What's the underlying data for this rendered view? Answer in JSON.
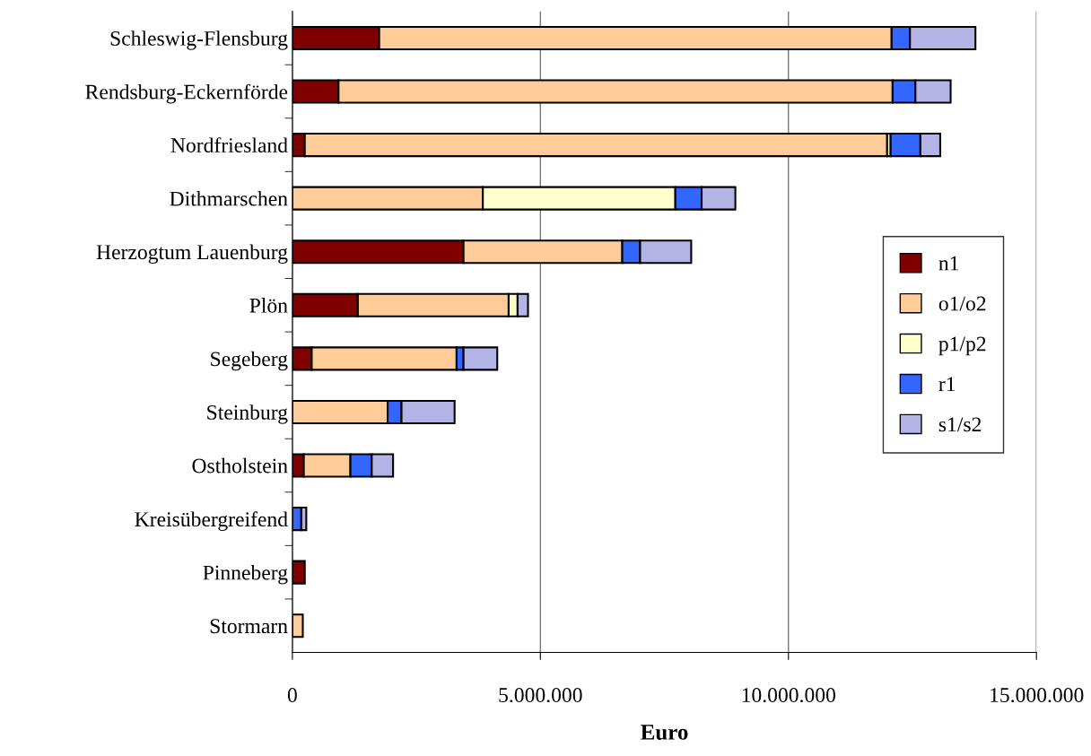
{
  "chart_data": {
    "type": "bar",
    "orientation": "horizontal",
    "stacked": true,
    "xlabel": "Euro",
    "categories": [
      "Schleswig-Flensburg",
      "Rendsburg-Eckernförde",
      "Nordfriesland",
      "Dithmarschen",
      "Herzogtum Lauenburg",
      "Plön",
      "Segeberg",
      "Steinburg",
      "Ostholstein",
      "Kreisübergreifend",
      "Pinneberg",
      "Stormarn"
    ],
    "series": [
      {
        "name": "n1",
        "color": "#800000",
        "values": [
          1750000,
          930000,
          250000,
          null,
          3450000,
          1320000,
          390000,
          null,
          230000,
          null,
          250000,
          null
        ]
      },
      {
        "name": "o1/o2",
        "color": "#ffcc99",
        "values": [
          10330000,
          11170000,
          11740000,
          3840000,
          3200000,
          3040000,
          2920000,
          1920000,
          940000,
          null,
          null,
          210000
        ]
      },
      {
        "name": "p1/p2",
        "color": "#ffffcc",
        "values": [
          null,
          null,
          70000,
          3880000,
          null,
          180000,
          null,
          null,
          null,
          null,
          null,
          null
        ]
      },
      {
        "name": "r1",
        "color": "#3366ff",
        "values": [
          370000,
          460000,
          600000,
          530000,
          360000,
          null,
          140000,
          280000,
          430000,
          180000,
          null,
          null
        ]
      },
      {
        "name": "s1/s2",
        "color": "#b3b3e6",
        "values": [
          1320000,
          710000,
          400000,
          680000,
          1030000,
          210000,
          680000,
          1070000,
          430000,
          100000,
          null,
          null
        ]
      }
    ],
    "xlim": [
      0,
      15000000
    ],
    "xticks": [
      0,
      {
        "value": 5000000,
        "label": "5.000.000"
      },
      {
        "value": 10000000,
        "label": "10.000.000"
      },
      {
        "value": 15000000,
        "label": "15.000.000"
      }
    ],
    "grid": "x",
    "legend": "right"
  }
}
